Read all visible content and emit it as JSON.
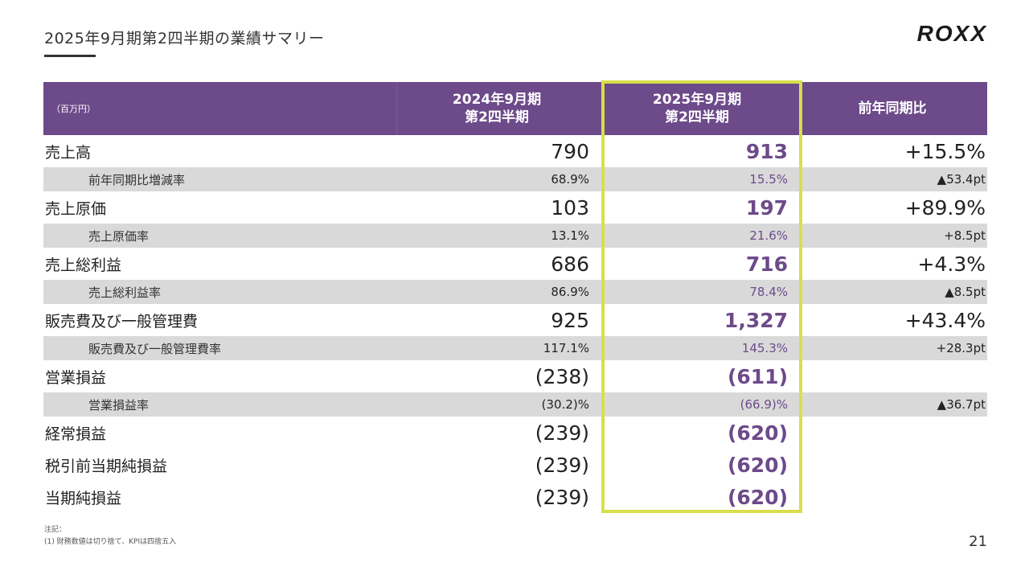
{
  "slide": {
    "title": "2025年9月期第2四半期の業績サマリー",
    "logo": "ROXX",
    "page_number": "21"
  },
  "table": {
    "unit": "（百万円）",
    "col1_line1": "2024年9月期",
    "col1_line2": "第2四半期",
    "col2_line1": "2025年9月期",
    "col2_line2": "第2四半期",
    "col3": "前年同期比",
    "rows": [
      {
        "label": "売上高",
        "v2024": "790",
        "v2025": "913",
        "yoy": "+15.5%"
      },
      {
        "label": "前年同期比増減率",
        "v2024": "68.9%",
        "v2025": "15.5%",
        "yoy": "▲53.4pt"
      },
      {
        "label": "売上原価",
        "v2024": "103",
        "v2025": "197",
        "yoy": "+89.9%"
      },
      {
        "label": "売上原価率",
        "v2024": "13.1%",
        "v2025": "21.6%",
        "yoy": "+8.5pt"
      },
      {
        "label": "売上総利益",
        "v2024": "686",
        "v2025": "716",
        "yoy": "+4.3%"
      },
      {
        "label": "売上総利益率",
        "v2024": "86.9%",
        "v2025": "78.4%",
        "yoy": "▲8.5pt"
      },
      {
        "label": "販売費及び一般管理費",
        "v2024": "925",
        "v2025": "1,327",
        "yoy": "+43.4%"
      },
      {
        "label": "販売費及び一般管理費率",
        "v2024": "117.1%",
        "v2025": "145.3%",
        "yoy": "+28.3pt"
      },
      {
        "label": "営業損益",
        "v2024": "(238)",
        "v2025": "(611)",
        "yoy": ""
      },
      {
        "label": "営業損益率",
        "v2024": "(30.2)%",
        "v2025": "(66.9)%",
        "yoy": "▲36.7pt"
      },
      {
        "label": "経常損益",
        "v2024": "(239)",
        "v2025": "(620)",
        "yoy": ""
      },
      {
        "label": "税引前当期純損益",
        "v2024": "(239)",
        "v2025": "(620)",
        "yoy": ""
      },
      {
        "label": "当期純損益",
        "v2024": "(239)",
        "v2025": "(620)",
        "yoy": ""
      }
    ]
  },
  "notes": {
    "heading": "注記：",
    "line1": "(1) 財務数値は切り捨て、KPIは四捨五入"
  },
  "colors": {
    "header_bg": "#6d4a8a",
    "highlight_border": "#d8df4a",
    "sub_row_bg": "#d9d9d9"
  }
}
